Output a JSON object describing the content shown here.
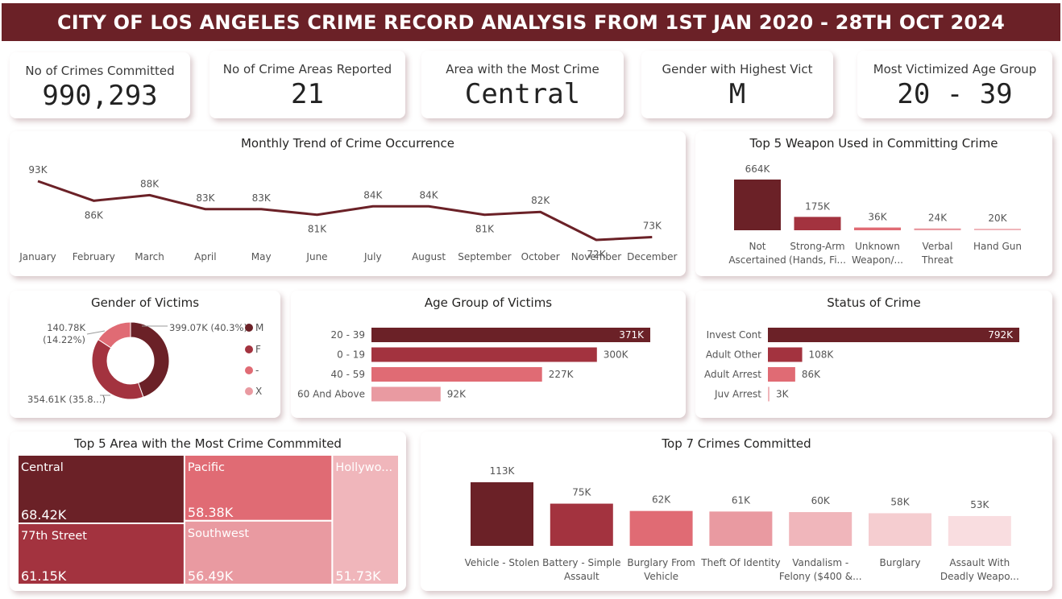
{
  "header": {
    "title": "CITY OF LOS ANGELES CRIME RECORD ANALYSIS FROM 1ST JAN 2020 -  28TH OCT 2024"
  },
  "kpis": [
    {
      "label": "No of Crimes Committed",
      "value": "990,293"
    },
    {
      "label": "No of Crime Areas Reported",
      "value": "21"
    },
    {
      "label": "Area with the Most Crime",
      "value": "Central"
    },
    {
      "label": "Gender with Highest Vict",
      "value": "M"
    },
    {
      "label": "Most Victimized Age Group",
      "value": "20 - 39"
    }
  ],
  "colors": {
    "dark": "#6b2127",
    "mid": "#a3333f",
    "med": "#e06b74",
    "light": "#e99aa1",
    "pale": "#f0b6bb",
    "paler": "#f5cdd0",
    "palest": "#f9dde0"
  },
  "chart_data": [
    {
      "id": "monthly",
      "type": "line",
      "title": "Monthly Trend of Crime Occurrence",
      "categories": [
        "January",
        "February",
        "March",
        "April",
        "May",
        "June",
        "July",
        "August",
        "September",
        "October",
        "November",
        "December"
      ],
      "values": [
        93,
        86,
        88,
        83,
        83,
        81,
        84,
        84,
        81,
        82,
        72,
        73
      ],
      "labels": [
        "93K",
        "86K",
        "88K",
        "83K",
        "83K",
        "81K",
        "84K",
        "84K",
        "81K",
        "82K",
        "72K",
        "73K"
      ]
    },
    {
      "id": "weapons",
      "type": "bar",
      "title": "Top 5 Weapon Used in Committing Crime",
      "categories": [
        [
          "Not",
          "Ascertained"
        ],
        [
          "Strong-Arm",
          "(Hands, Fi..."
        ],
        [
          "Unknown",
          "Weapon/..."
        ],
        [
          "Verbal",
          "Threat"
        ],
        [
          "Hand Gun"
        ]
      ],
      "values": [
        664,
        175,
        36,
        24,
        20
      ],
      "labels": [
        "664K",
        "175K",
        "36K",
        "24K",
        "20K"
      ]
    },
    {
      "id": "gender",
      "type": "pie",
      "title": "Gender of Victims",
      "categories": [
        "M",
        "F",
        "-",
        "X"
      ],
      "values": [
        399.07,
        354.61,
        140.78,
        0.01
      ],
      "labels": [
        [
          "399.07K (40.3%)"
        ],
        [
          "354.61K (35.8...)"
        ],
        [
          "140.78K",
          "(14.22%)"
        ],
        []
      ]
    },
    {
      "id": "age",
      "type": "bar",
      "title": "Age Group of Victims",
      "categories": [
        "20 - 39",
        "0 - 19",
        "40 - 59",
        "60 And Above"
      ],
      "values": [
        371,
        300,
        227,
        92
      ],
      "labels": [
        "371K",
        "300K",
        "227K",
        "92K"
      ]
    },
    {
      "id": "status",
      "type": "bar",
      "title": "Status of Crime",
      "categories": [
        "Invest Cont",
        "Adult Other",
        "Adult Arrest",
        "Juv Arrest"
      ],
      "values": [
        792,
        108,
        86,
        3
      ],
      "labels": [
        "792K",
        "108K",
        "86K",
        "3K"
      ]
    },
    {
      "id": "areas",
      "type": "heatmap",
      "title": "Top 5 Area with the Most Crime Commmited",
      "categories": [
        "Central",
        "77th Street",
        "Pacific",
        "Southwest",
        "Hollywo..."
      ],
      "values": [
        68.42,
        61.15,
        58.38,
        56.49,
        51.73
      ],
      "labels": [
        "68.42K",
        "61.15K",
        "58.38K",
        "56.49K",
        "51.73K"
      ]
    },
    {
      "id": "crimes",
      "type": "bar",
      "title": "Top 7 Crimes Committed",
      "categories": [
        [
          "Vehicle - Stolen"
        ],
        [
          "Battery - Simple",
          "Assault"
        ],
        [
          "Burglary From",
          "Vehicle"
        ],
        [
          "Theft Of Identity"
        ],
        [
          "Vandalism -",
          "Felony ($400 &..."
        ],
        [
          "Burglary"
        ],
        [
          "Assault With",
          "Deadly Weapo..."
        ]
      ],
      "values": [
        113,
        75,
        62,
        61,
        60,
        58,
        53
      ],
      "labels": [
        "113K",
        "75K",
        "62K",
        "61K",
        "60K",
        "58K",
        "53K"
      ]
    }
  ]
}
